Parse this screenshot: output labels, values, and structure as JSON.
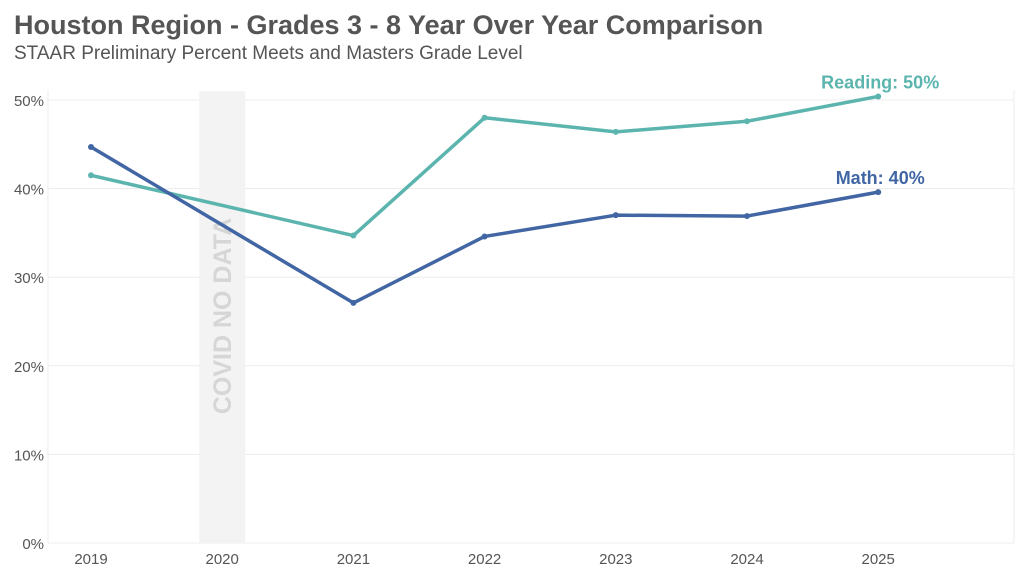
{
  "chart_data": {
    "type": "line",
    "title": "Houston Region - Grades 3 - 8 Year Over Year Comparison",
    "subtitle": "STAAR Preliminary Percent Meets and Masters Grade Level",
    "x": [
      "2019",
      "2020",
      "2021",
      "2022",
      "2023",
      "2024",
      "2025"
    ],
    "y_ticks": [
      "0%",
      "10%",
      "20%",
      "30%",
      "40%",
      "50%"
    ],
    "ylim": [
      0,
      50
    ],
    "grid": true,
    "gap_annotation": {
      "category": "2020",
      "label": "COVID NO DATA",
      "color": "#f3f3f3"
    },
    "series": [
      {
        "name": "Reading",
        "end_label": "Reading: 50%",
        "color": "#5bb5ae",
        "values": [
          41.5,
          null,
          34.7,
          48.0,
          46.4,
          47.6,
          50.4
        ]
      },
      {
        "name": "Math",
        "end_label": "Math: 40%",
        "color": "#4166a3",
        "values": [
          44.7,
          null,
          27.1,
          34.6,
          37.0,
          36.9,
          39.6
        ]
      }
    ]
  }
}
